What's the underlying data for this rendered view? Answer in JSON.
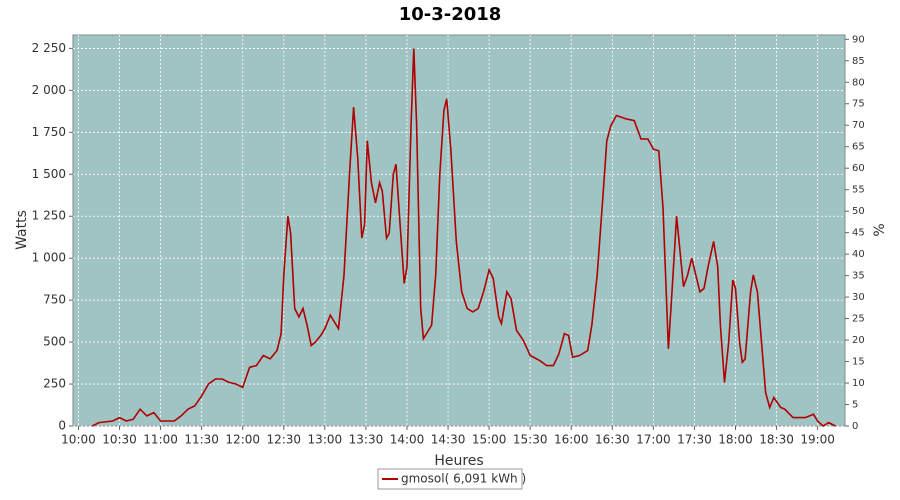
{
  "chart_data": {
    "type": "line",
    "title": "10-3-2018",
    "xlabel": "Heures",
    "ylabel": "Watts",
    "y2label": "%",
    "xlim": [
      596,
      1160
    ],
    "ylim": [
      0,
      2330
    ],
    "y2lim": [
      0,
      91
    ],
    "grid": true,
    "legend": "bottom",
    "xticks": [
      {
        "value": 600,
        "label": "10:00"
      },
      {
        "value": 630,
        "label": "10:30"
      },
      {
        "value": 660,
        "label": "11:00"
      },
      {
        "value": 690,
        "label": "11:30"
      },
      {
        "value": 720,
        "label": "12:00"
      },
      {
        "value": 750,
        "label": "12:30"
      },
      {
        "value": 780,
        "label": "13:00"
      },
      {
        "value": 810,
        "label": "13:30"
      },
      {
        "value": 840,
        "label": "14:00"
      },
      {
        "value": 870,
        "label": "14:30"
      },
      {
        "value": 900,
        "label": "15:00"
      },
      {
        "value": 930,
        "label": "15:30"
      },
      {
        "value": 960,
        "label": "16:00"
      },
      {
        "value": 990,
        "label": "16:30"
      },
      {
        "value": 1020,
        "label": "17:00"
      },
      {
        "value": 1050,
        "label": "17:30"
      },
      {
        "value": 1080,
        "label": "18:00"
      },
      {
        "value": 1110,
        "label": "18:30"
      },
      {
        "value": 1140,
        "label": "19:00"
      }
    ],
    "yticks": [
      0,
      250,
      500,
      750,
      {
        "value": 1000,
        "label": "1 000"
      },
      {
        "value": 1250,
        "label": "1 250"
      },
      {
        "value": 1500,
        "label": "1 500"
      },
      {
        "value": 1750,
        "label": "1 750"
      },
      {
        "value": 2000,
        "label": "2 000"
      },
      {
        "value": 2250,
        "label": "2 250"
      }
    ],
    "y2ticks": [
      0,
      5,
      10,
      15,
      20,
      25,
      30,
      35,
      40,
      45,
      50,
      55,
      60,
      65,
      70,
      75,
      80,
      85,
      90
    ],
    "x": [
      610,
      615,
      625,
      630,
      635,
      640,
      645,
      650,
      655,
      660,
      665,
      670,
      675,
      680,
      685,
      690,
      695,
      700,
      705,
      710,
      715,
      720,
      725,
      730,
      735,
      740,
      745,
      748,
      750,
      753,
      755,
      758,
      761,
      764,
      767,
      770,
      773,
      777,
      780,
      784,
      787,
      790,
      794,
      798,
      801,
      804,
      807,
      809,
      811,
      814,
      817,
      820,
      822,
      825,
      827,
      830,
      832,
      835,
      838,
      840,
      843,
      845,
      847,
      850,
      852,
      855,
      858,
      861,
      864,
      867,
      869,
      872,
      876,
      880,
      884,
      888,
      892,
      896,
      900,
      903,
      907,
      909,
      913,
      916,
      920,
      925,
      930,
      937,
      942,
      947,
      951,
      955,
      958,
      961,
      966,
      972,
      975,
      979,
      983,
      986,
      989,
      993,
      1000,
      1006,
      1011,
      1016,
      1020,
      1024,
      1027,
      1031,
      1034,
      1037,
      1040,
      1042,
      1045,
      1048,
      1051,
      1054,
      1057,
      1060,
      1064,
      1067,
      1069,
      1072,
      1075,
      1078,
      1080,
      1083,
      1085,
      1087,
      1091,
      1093,
      1096,
      1099,
      1102,
      1105,
      1108,
      1113,
      1116,
      1122,
      1127,
      1131,
      1137,
      1140,
      1144,
      1148,
      1153
    ],
    "series": [
      {
        "name": "gmosol( 6,091 kWh )",
        "color": "#b00000",
        "values": [
          0,
          20,
          30,
          50,
          30,
          40,
          100,
          60,
          80,
          30,
          30,
          30,
          60,
          100,
          120,
          180,
          250,
          280,
          280,
          260,
          250,
          230,
          350,
          360,
          420,
          400,
          450,
          550,
          900,
          1250,
          1150,
          700,
          650,
          700,
          600,
          480,
          500,
          540,
          580,
          660,
          620,
          580,
          900,
          1500,
          1900,
          1600,
          1120,
          1200,
          1700,
          1450,
          1330,
          1450,
          1400,
          1120,
          1150,
          1500,
          1560,
          1200,
          850,
          950,
          1800,
          2250,
          1800,
          700,
          520,
          560,
          600,
          900,
          1500,
          1880,
          1950,
          1650,
          1100,
          800,
          700,
          680,
          700,
          800,
          930,
          880,
          650,
          610,
          800,
          760,
          570,
          510,
          420,
          390,
          360,
          360,
          430,
          550,
          540,
          410,
          420,
          450,
          600,
          900,
          1350,
          1700,
          1790,
          1850,
          1830,
          1820,
          1710,
          1710,
          1650,
          1640,
          1300,
          460,
          850,
          1250,
          1000,
          830,
          900,
          1000,
          900,
          800,
          820,
          950,
          1100,
          950,
          600,
          260,
          500,
          870,
          820,
          500,
          380,
          400,
          800,
          900,
          800,
          500,
          200,
          110,
          170,
          110,
          100,
          50,
          50,
          50,
          70,
          30,
          0,
          20,
          0
        ]
      }
    ]
  }
}
